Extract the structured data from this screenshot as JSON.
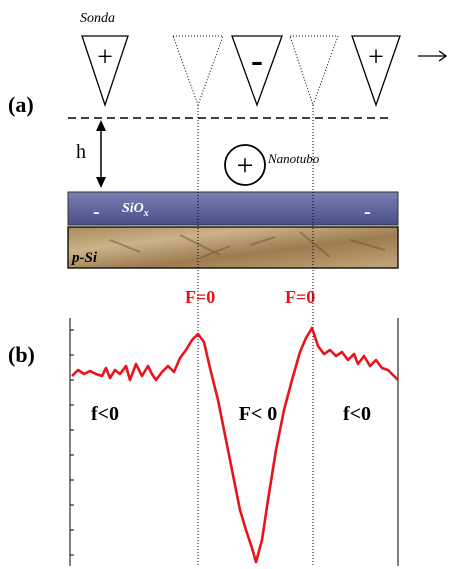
{
  "probe_label": "Sonda",
  "probes": [
    {
      "sign": "+"
    },
    {
      "sign": "-"
    },
    {
      "sign": "+"
    }
  ],
  "panel_a": "(a)",
  "gap_label": "h",
  "nanotube": {
    "sign": "+",
    "label": "Nanotubo"
  },
  "oxide": {
    "text": "SiO",
    "subscript": "x",
    "left_charge": "-",
    "right_charge": "-"
  },
  "substrate": "p-Si",
  "force_zero": [
    "F=0",
    "F=0"
  ],
  "panel_b": "(b)",
  "regions": [
    "f<0",
    "F< 0",
    "f<0"
  ]
}
